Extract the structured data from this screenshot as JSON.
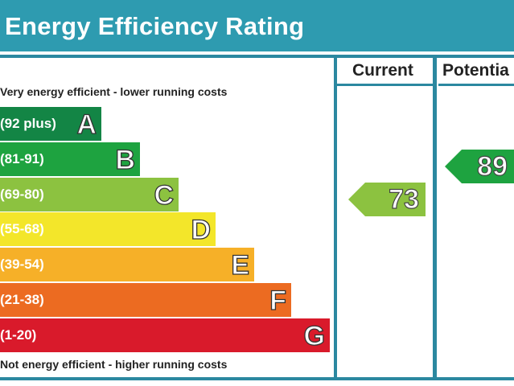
{
  "title": "Energy Efficiency Rating",
  "columns": {
    "current": "Current",
    "potential": "Potentia"
  },
  "top_note": "Very energy efficient - lower running costs",
  "bottom_note": "Not energy efficient - higher running costs",
  "colors": {
    "title_bg": "#2e9bb0",
    "border": "#2b88a0",
    "A": "#138545",
    "B": "#1ea340",
    "C": "#8cc240",
    "D": "#f3e62a",
    "E": "#f6b028",
    "F": "#ec6b21",
    "G": "#d91a2b"
  },
  "chart_data": {
    "type": "bar",
    "bands": [
      {
        "letter": "A",
        "range": "(92 plus)"
      },
      {
        "letter": "B",
        "range": "(81-91)"
      },
      {
        "letter": "C",
        "range": "(69-80)"
      },
      {
        "letter": "D",
        "range": "(55-68)"
      },
      {
        "letter": "E",
        "range": "(39-54)"
      },
      {
        "letter": "F",
        "range": "(21-38)"
      },
      {
        "letter": "G",
        "range": "(1-20)"
      }
    ],
    "current": {
      "value": "73",
      "band": "C"
    },
    "potential": {
      "value": "89",
      "band": "B"
    }
  }
}
